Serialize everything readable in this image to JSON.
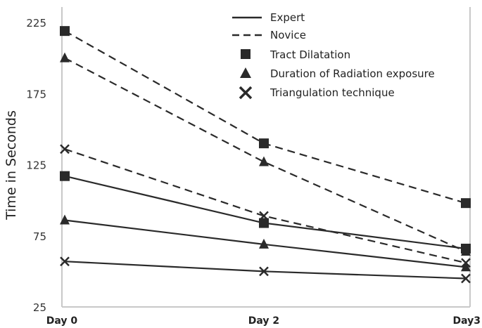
{
  "chart_data": {
    "type": "line",
    "ylabel": "Time in Seconds",
    "xlabel": "",
    "categories": [
      "Day 0",
      "Day 2",
      "Day3"
    ],
    "ylim": [
      25,
      225
    ],
    "yticks": [
      "225",
      "175",
      "125",
      "75",
      "25"
    ],
    "grid": false,
    "legend_placement": "top-right",
    "legend": {
      "line_styles": [
        {
          "label": "Expert",
          "style": "solid"
        },
        {
          "label": "Novice",
          "style": "dashed"
        }
      ],
      "markers": [
        {
          "label": "Tract Dilatation",
          "marker": "square"
        },
        {
          "label": "Duration of Radiation exposure",
          "marker": "triangle"
        },
        {
          "label": "Triangulation technique",
          "marker": "x"
        }
      ]
    },
    "series": [
      {
        "group": "Novice",
        "measure": "Tract Dilatation",
        "style": "dashed",
        "marker": "square",
        "values": [
          219,
          140,
          98
        ]
      },
      {
        "group": "Novice",
        "measure": "Duration of Radiation exposure",
        "style": "dashed",
        "marker": "triangle",
        "values": [
          200,
          127,
          64
        ]
      },
      {
        "group": "Novice",
        "measure": "Triangulation technique",
        "style": "dashed",
        "marker": "x",
        "values": [
          136,
          89,
          56
        ]
      },
      {
        "group": "Expert",
        "measure": "Tract Dilatation",
        "style": "solid",
        "marker": "square",
        "values": [
          117,
          84,
          66
        ]
      },
      {
        "group": "Expert",
        "measure": "Duration of Radiation exposure",
        "style": "solid",
        "marker": "triangle",
        "values": [
          86,
          69,
          53
        ]
      },
      {
        "group": "Expert",
        "measure": "Triangulation technique",
        "style": "solid",
        "marker": "x",
        "values": [
          57,
          50,
          45
        ]
      }
    ],
    "colors": {
      "line": "#2a2a2a",
      "axis": "#c8c8c8",
      "text": "#222222"
    }
  }
}
